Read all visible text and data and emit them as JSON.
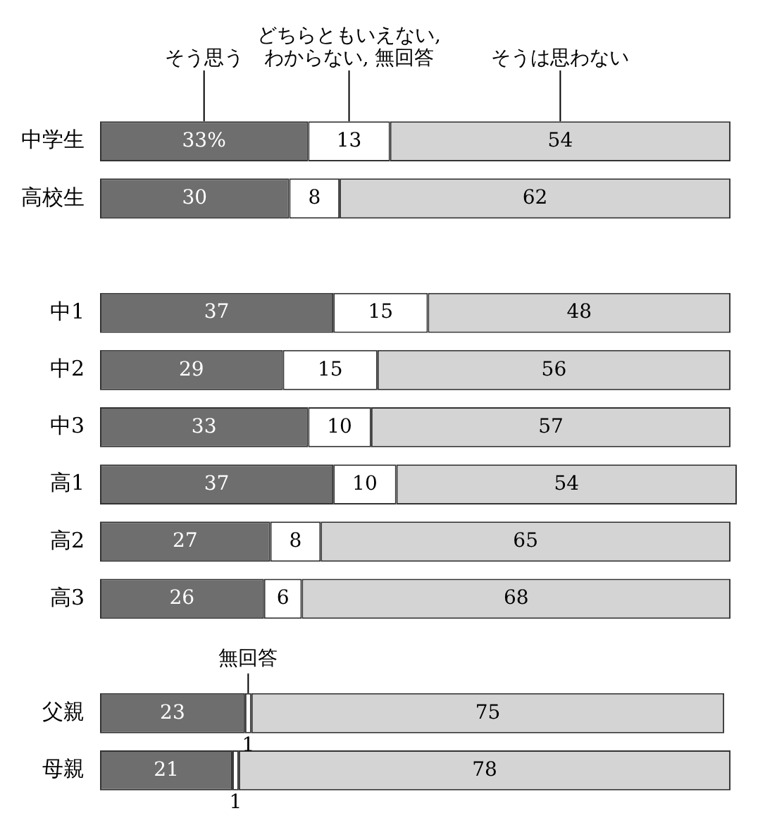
{
  "chart_data": {
    "type": "bar",
    "orientation": "horizontal",
    "stacked": true,
    "tick_labels": "y",
    "xlim": [
      0,
      101
    ],
    "categories": [
      "中学生",
      "高校生",
      null,
      "中1",
      "中2",
      "中3",
      "高1",
      "高2",
      "高3",
      null,
      "父親",
      "母親"
    ],
    "series": [
      {
        "name": "そう思う",
        "color": "#6e6e6e",
        "values": [
          33,
          30,
          null,
          37,
          29,
          33,
          37,
          27,
          26,
          null,
          23,
          21
        ],
        "value_labels": [
          "33%",
          "30",
          null,
          "37",
          "29",
          "33",
          "37",
          "27",
          "26",
          null,
          "23",
          "21"
        ]
      },
      {
        "name": "どちらともいえない,\nわからない, 無回答",
        "color": "#ffffff",
        "values": [
          13,
          8,
          null,
          15,
          15,
          10,
          10,
          8,
          6,
          null,
          1,
          1
        ],
        "value_labels": [
          "13",
          "8",
          null,
          "15",
          "15",
          "10",
          "10",
          "8",
          "6",
          null,
          "1",
          "1"
        ]
      },
      {
        "name": "そうは思わない",
        "color": "#d4d4d4",
        "values": [
          54,
          62,
          null,
          48,
          56,
          57,
          54,
          65,
          68,
          null,
          75,
          78
        ],
        "value_labels": [
          "54",
          "62",
          null,
          "48",
          "56",
          "57",
          "54",
          "65",
          "68",
          null,
          "75",
          "78"
        ]
      }
    ],
    "annotations": [
      {
        "text": "無回答",
        "x": 23.5,
        "y": "父親"
      }
    ]
  }
}
